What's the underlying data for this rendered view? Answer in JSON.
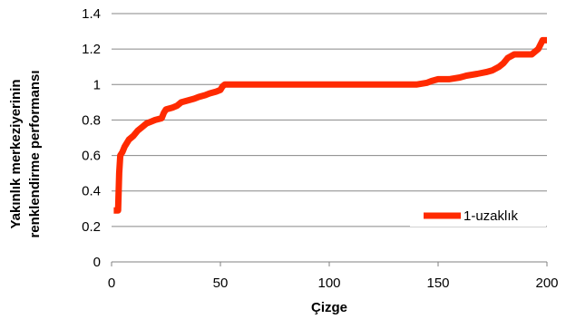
{
  "chart_data": {
    "type": "line",
    "xlabel": "Çizge",
    "ylabel_lines": [
      "Yakınlık merkeziyerinin",
      "renklendirme performansı"
    ],
    "xlim": [
      0,
      200
    ],
    "ylim": [
      0,
      1.4
    ],
    "x_ticks": [
      "0",
      "50",
      "100",
      "150",
      "200"
    ],
    "y_ticks": [
      "0",
      "0.2",
      "0.4",
      "0.6",
      "0.8",
      "1",
      "1.2",
      "1.4"
    ],
    "grid": "horizontal",
    "legend_position": "right",
    "series": [
      {
        "name": "1-uzaklık",
        "color": "#ff2a00",
        "x": [
          1,
          3,
          3.5,
          4,
          5,
          6,
          8,
          10,
          12,
          14,
          16,
          18,
          20,
          23,
          24,
          25,
          28,
          30,
          32,
          35,
          38,
          40,
          43,
          45,
          48,
          50,
          51,
          52,
          60,
          80,
          100,
          120,
          140,
          145,
          147,
          150,
          155,
          160,
          163,
          168,
          172,
          175,
          178,
          180,
          182,
          185,
          190,
          193,
          196,
          198,
          200
        ],
        "y": [
          0.29,
          0.29,
          0.5,
          0.6,
          0.62,
          0.65,
          0.69,
          0.71,
          0.74,
          0.76,
          0.78,
          0.79,
          0.8,
          0.81,
          0.84,
          0.86,
          0.87,
          0.88,
          0.9,
          0.91,
          0.92,
          0.93,
          0.94,
          0.95,
          0.96,
          0.97,
          0.99,
          1.0,
          1.0,
          1.0,
          1.0,
          1.0,
          1.0,
          1.01,
          1.02,
          1.03,
          1.03,
          1.04,
          1.05,
          1.06,
          1.07,
          1.08,
          1.1,
          1.12,
          1.15,
          1.17,
          1.17,
          1.17,
          1.2,
          1.25,
          1.25
        ]
      }
    ]
  }
}
